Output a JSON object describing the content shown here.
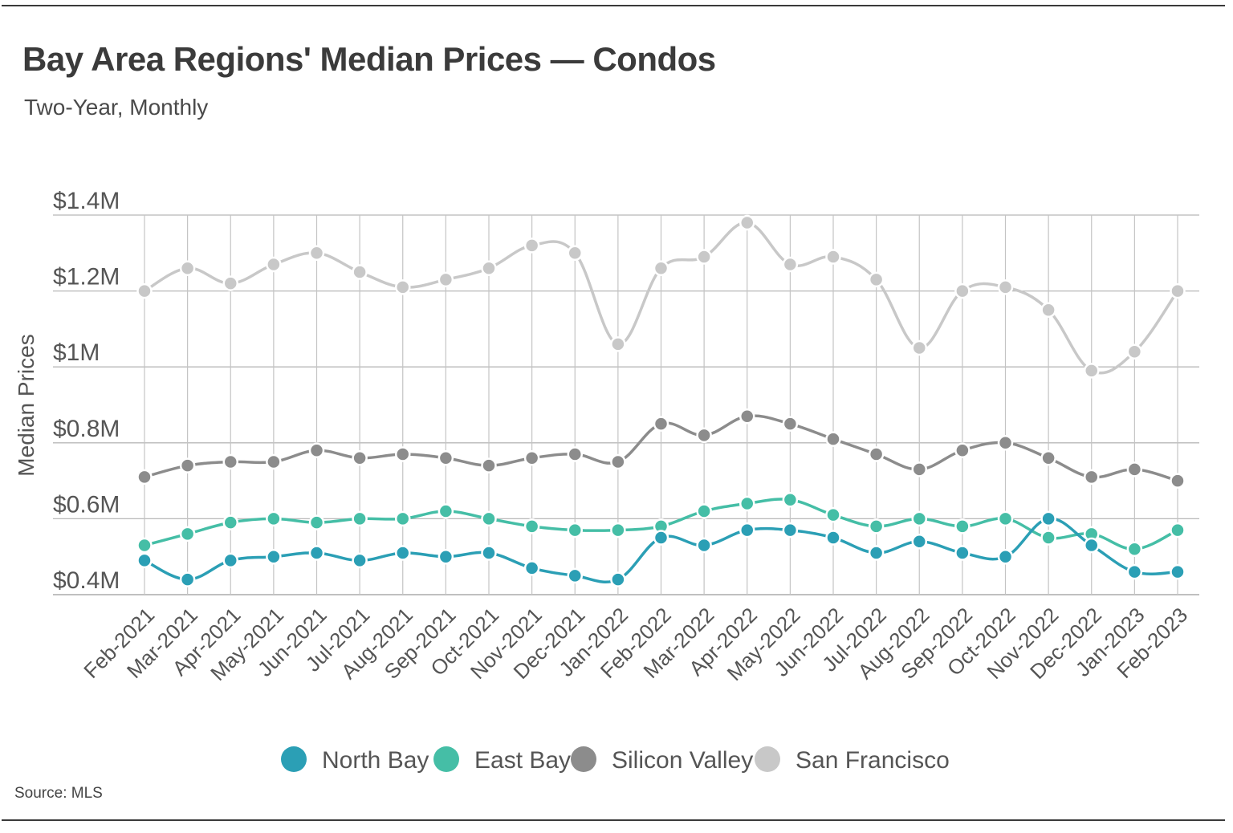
{
  "title": "Bay Area Regions' Median Prices — Condos",
  "subtitle": "Two-Year, Monthly",
  "source": "Source:  MLS",
  "chart_data": {
    "type": "line",
    "title": "Bay Area Regions' Median Prices — Condos",
    "subtitle": "Two-Year, Monthly",
    "xlabel": "",
    "ylabel": "Median Prices",
    "ylim": [
      0.4,
      1.4
    ],
    "yticks": [
      0.4,
      0.6,
      0.8,
      1.0,
      1.2,
      1.4
    ],
    "ytick_labels": [
      "$0.4M",
      "$0.6M",
      "$0.8M",
      "$1M",
      "$1.2M",
      "$1.4M"
    ],
    "grid": true,
    "legend_position": "bottom-center",
    "categories": [
      "Feb-2021",
      "Mar-2021",
      "Apr-2021",
      "May-2021",
      "Jun-2021",
      "Jul-2021",
      "Aug-2021",
      "Sep-2021",
      "Oct-2021",
      "Nov-2021",
      "Dec-2021",
      "Jan-2022",
      "Feb-2022",
      "Mar-2022",
      "Apr-2022",
      "May-2022",
      "Jun-2022",
      "Jul-2022",
      "Aug-2022",
      "Sep-2022",
      "Oct-2022",
      "Nov-2022",
      "Dec-2022",
      "Jan-2023",
      "Feb-2023"
    ],
    "series": [
      {
        "name": "San Francisco",
        "color": "#c8c8c8",
        "values": [
          1.2,
          1.26,
          1.22,
          1.27,
          1.3,
          1.25,
          1.21,
          1.23,
          1.26,
          1.32,
          1.3,
          1.06,
          1.26,
          1.29,
          1.38,
          1.27,
          1.29,
          1.23,
          1.05,
          1.2,
          1.21,
          1.15,
          0.99,
          1.04,
          1.2
        ]
      },
      {
        "name": "Silicon Valley",
        "color": "#8c8c8c",
        "values": [
          0.71,
          0.74,
          0.75,
          0.75,
          0.78,
          0.76,
          0.77,
          0.76,
          0.74,
          0.76,
          0.77,
          0.75,
          0.85,
          0.82,
          0.87,
          0.85,
          0.81,
          0.77,
          0.73,
          0.78,
          0.8,
          0.76,
          0.71,
          0.73,
          0.7
        ]
      },
      {
        "name": "East Bay",
        "color": "#45bea6",
        "values": [
          0.53,
          0.56,
          0.59,
          0.6,
          0.59,
          0.6,
          0.6,
          0.62,
          0.6,
          0.58,
          0.57,
          0.57,
          0.58,
          0.62,
          0.64,
          0.65,
          0.61,
          0.58,
          0.6,
          0.58,
          0.6,
          0.55,
          0.56,
          0.52,
          0.57
        ]
      },
      {
        "name": "North Bay",
        "color": "#2b9fb5",
        "values": [
          0.49,
          0.44,
          0.49,
          0.5,
          0.51,
          0.49,
          0.51,
          0.5,
          0.51,
          0.47,
          0.45,
          0.44,
          0.55,
          0.53,
          0.57,
          0.57,
          0.55,
          0.51,
          0.54,
          0.51,
          0.5,
          0.6,
          0.53,
          0.46,
          0.46
        ]
      }
    ],
    "legend": [
      "North Bay",
      "East Bay",
      "Silicon Valley",
      "San Francisco"
    ]
  }
}
